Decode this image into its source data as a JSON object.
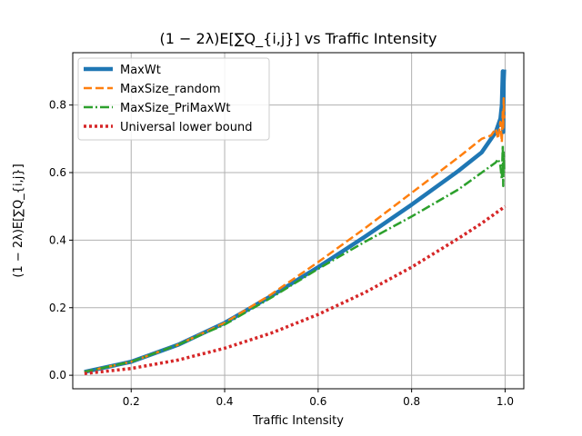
{
  "chart_data": {
    "type": "line",
    "title": "(1 − 2λ)E[∑Q_{i,j}] vs Traffic Intensity",
    "xlabel": "Traffic Intensity",
    "ylabel": "(1 − 2λ)E[∑Q_{i,j}]",
    "xlim": [
      0.075,
      1.04
    ],
    "ylim": [
      -0.04,
      0.955
    ],
    "xticks": [
      "0.2",
      "0.4",
      "0.6",
      "0.8",
      "1.0"
    ],
    "xtick_values": [
      0.2,
      0.4,
      0.6,
      0.8,
      1.0
    ],
    "yticks": [
      "0.0",
      "0.2",
      "0.4",
      "0.6",
      "0.8"
    ],
    "ytick_values": [
      0.0,
      0.2,
      0.4,
      0.6,
      0.8
    ],
    "grid": true,
    "legend_position": "top-left",
    "series": [
      {
        "name": "MaxWt",
        "color": "#1f77b4",
        "style": "solid",
        "width": 4.5,
        "x": [
          0.1,
          0.2,
          0.3,
          0.4,
          0.5,
          0.6,
          0.7,
          0.8,
          0.9,
          0.95,
          0.97,
          0.98,
          0.985,
          0.99,
          0.993,
          0.995,
          0.996,
          0.997,
          0.998
        ],
        "y": [
          0.01,
          0.04,
          0.09,
          0.155,
          0.235,
          0.32,
          0.41,
          0.505,
          0.605,
          0.66,
          0.7,
          0.72,
          0.74,
          0.76,
          0.8,
          0.9,
          0.72,
          0.87,
          0.905
        ]
      },
      {
        "name": "MaxSize_random",
        "color": "#ff7f0e",
        "style": "dashed",
        "width": 2.5,
        "x": [
          0.1,
          0.2,
          0.3,
          0.4,
          0.5,
          0.6,
          0.7,
          0.8,
          0.9,
          0.95,
          0.97,
          0.98,
          0.985,
          0.99,
          0.993,
          0.995,
          0.996,
          0.997,
          0.998
        ],
        "y": [
          0.01,
          0.04,
          0.09,
          0.155,
          0.24,
          0.335,
          0.435,
          0.54,
          0.645,
          0.7,
          0.71,
          0.73,
          0.7,
          0.75,
          0.69,
          0.78,
          0.73,
          0.82,
          0.76
        ]
      },
      {
        "name": "MaxSize_PriMaxWt",
        "color": "#2ca02c",
        "style": "dashdot",
        "width": 2.5,
        "x": [
          0.1,
          0.2,
          0.3,
          0.4,
          0.5,
          0.6,
          0.7,
          0.8,
          0.9,
          0.95,
          0.97,
          0.98,
          0.985,
          0.99,
          0.993,
          0.995,
          0.996,
          0.997,
          0.998
        ],
        "y": [
          0.01,
          0.04,
          0.09,
          0.15,
          0.23,
          0.315,
          0.395,
          0.47,
          0.55,
          0.6,
          0.62,
          0.63,
          0.64,
          0.62,
          0.58,
          0.68,
          0.56,
          0.66,
          0.6
        ]
      },
      {
        "name": "Universal lower bound",
        "color": "#d62728",
        "style": "dotted",
        "width": 3.5,
        "x": [
          0.1,
          0.2,
          0.3,
          0.4,
          0.5,
          0.6,
          0.7,
          0.8,
          0.9,
          0.95,
          1.0
        ],
        "y": [
          0.005,
          0.02,
          0.045,
          0.08,
          0.125,
          0.18,
          0.245,
          0.32,
          0.405,
          0.45,
          0.5
        ]
      }
    ]
  }
}
